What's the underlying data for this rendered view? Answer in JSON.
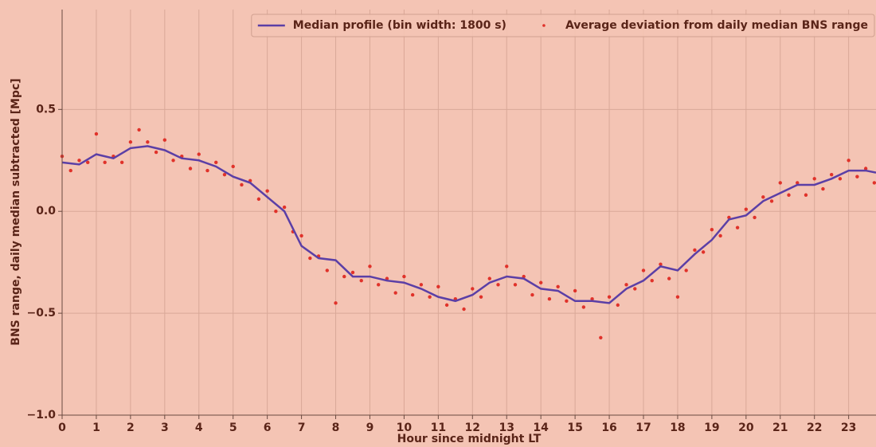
{
  "chart_data": {
    "type": "line_scatter",
    "xlabel": "Hour since midnight LT",
    "ylabel": "BNS range, daily median subtracted [Mpc]",
    "xlim": [
      0,
      23.8
    ],
    "ylim": [
      -1.0,
      0.99
    ],
    "xticks": [
      0,
      1,
      2,
      3,
      4,
      5,
      6,
      7,
      8,
      9,
      10,
      11,
      12,
      13,
      14,
      15,
      16,
      17,
      18,
      19,
      20,
      21,
      22,
      23
    ],
    "yticks": [
      {
        "value": -1.0,
        "label": "−1.0"
      },
      {
        "value": -0.5,
        "label": "−0.5"
      },
      {
        "value": 0,
        "label": "0.0"
      },
      0.5
    ],
    "grid": true,
    "legend": "upper right",
    "series": [
      {
        "name": "Median profile (bin width: 1800 s)",
        "kind": "line",
        "color": "#5b3fa6",
        "x": [
          0,
          0.5,
          1,
          1.5,
          2,
          2.5,
          3,
          3.5,
          4,
          4.5,
          5,
          5.5,
          6,
          6.5,
          7,
          7.5,
          8,
          8.5,
          9,
          9.5,
          10,
          10.5,
          11,
          11.5,
          12,
          12.5,
          13,
          13.5,
          14,
          14.5,
          15,
          15.5,
          16,
          16.5,
          17,
          17.5,
          18,
          18.5,
          19,
          19.5,
          20,
          20.5,
          21,
          21.5,
          22,
          22.5,
          23,
          23.5,
          23.8
        ],
        "values": [
          0.24,
          0.23,
          0.28,
          0.26,
          0.31,
          0.32,
          0.3,
          0.26,
          0.25,
          0.22,
          0.17,
          0.14,
          0.07,
          0.0,
          -0.17,
          -0.23,
          -0.24,
          -0.32,
          -0.32,
          -0.34,
          -0.35,
          -0.38,
          -0.42,
          -0.44,
          -0.41,
          -0.35,
          -0.32,
          -0.33,
          -0.38,
          -0.39,
          -0.44,
          -0.44,
          -0.45,
          -0.38,
          -0.34,
          -0.27,
          -0.29,
          -0.21,
          -0.14,
          -0.04,
          -0.02,
          0.05,
          0.09,
          0.13,
          0.13,
          0.16,
          0.2,
          0.2,
          0.19
        ]
      },
      {
        "name": "Average deviation from daily median BNS range",
        "kind": "scatter",
        "color": "#e0322a",
        "x": [
          0,
          0.25,
          0.5,
          0.75,
          1,
          1.25,
          1.5,
          1.75,
          2,
          2.25,
          2.5,
          2.75,
          3,
          3.25,
          3.5,
          3.75,
          4,
          4.25,
          4.5,
          4.75,
          5,
          5.25,
          5.5,
          5.75,
          6,
          6.25,
          6.5,
          6.75,
          7,
          7.25,
          7.5,
          7.75,
          8,
          8.25,
          8.5,
          8.75,
          9,
          9.25,
          9.5,
          9.75,
          10,
          10.25,
          10.5,
          10.75,
          11,
          11.25,
          11.5,
          11.75,
          12,
          12.25,
          12.5,
          12.75,
          13,
          13.25,
          13.5,
          13.75,
          14,
          14.25,
          14.5,
          14.75,
          15,
          15.25,
          15.5,
          15.75,
          16,
          16.25,
          16.5,
          16.75,
          17,
          17.25,
          17.5,
          17.75,
          18,
          18.25,
          18.5,
          18.75,
          19,
          19.25,
          19.5,
          19.75,
          20,
          20.25,
          20.5,
          20.75,
          21,
          21.25,
          21.5,
          21.75,
          22,
          22.25,
          22.5,
          22.75,
          23,
          23.25,
          23.5,
          23.75
        ],
        "values": [
          0.27,
          0.2,
          0.25,
          0.24,
          0.38,
          0.24,
          0.27,
          0.24,
          0.34,
          0.4,
          0.34,
          0.29,
          0.35,
          0.25,
          0.27,
          0.21,
          0.28,
          0.2,
          0.24,
          0.18,
          0.22,
          0.13,
          0.15,
          0.06,
          0.1,
          0.0,
          0.02,
          -0.1,
          -0.12,
          -0.23,
          -0.22,
          -0.29,
          -0.45,
          -0.32,
          -0.3,
          -0.34,
          -0.27,
          -0.36,
          -0.33,
          -0.4,
          -0.32,
          -0.41,
          -0.36,
          -0.42,
          -0.37,
          -0.46,
          -0.43,
          -0.48,
          -0.38,
          -0.42,
          -0.33,
          -0.36,
          -0.27,
          -0.36,
          -0.32,
          -0.41,
          -0.35,
          -0.43,
          -0.37,
          -0.44,
          -0.39,
          -0.47,
          -0.43,
          -0.62,
          -0.42,
          -0.46,
          -0.36,
          -0.38,
          -0.29,
          -0.34,
          -0.26,
          -0.33,
          -0.42,
          -0.29,
          -0.19,
          -0.2,
          -0.09,
          -0.12,
          -0.03,
          -0.08,
          0.01,
          -0.03,
          0.07,
          0.05,
          0.14,
          0.08,
          0.14,
          0.08,
          0.16,
          0.11,
          0.18,
          0.16,
          0.25,
          0.17,
          0.21,
          0.14
        ]
      }
    ]
  }
}
